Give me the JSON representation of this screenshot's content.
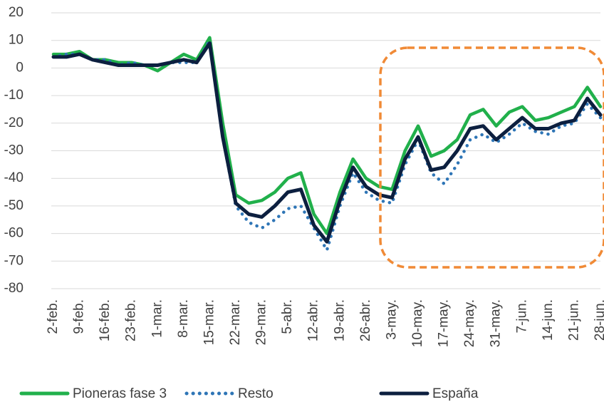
{
  "chart_data": {
    "type": "line",
    "categories": [
      "2-feb.",
      null,
      "9-feb.",
      null,
      "16-feb.",
      null,
      "23-feb.",
      null,
      "1-mar.",
      null,
      "8-mar.",
      null,
      "15-mar.",
      null,
      "22-mar.",
      null,
      "29-mar.",
      null,
      "5-abr.",
      null,
      "12-abr.",
      null,
      "19-abr.",
      null,
      "26-abr.",
      null,
      "3-may.",
      null,
      "10-may.",
      null,
      "17-may.",
      null,
      "24-may.",
      null,
      "31-may.",
      null,
      "7-jun.",
      null,
      "14-jun.",
      null,
      "21-jun.",
      null,
      "28-jun."
    ],
    "series": [
      {
        "name": "Pioneras fase 3",
        "color": "#21b04b",
        "style": "solid",
        "values": [
          5,
          5,
          6,
          3,
          3,
          2,
          2,
          1,
          -1,
          2,
          5,
          3,
          11,
          -20,
          -46,
          -49,
          -48,
          -45,
          -40,
          -38,
          -53,
          -60,
          -45,
          -33,
          -40,
          -43,
          -44,
          -30,
          -21,
          -32,
          -30,
          -26,
          -17,
          -15,
          -21,
          -16,
          -14,
          -19,
          -18,
          -16,
          -14,
          -7,
          -14
        ]
      },
      {
        "name": "Resto",
        "color": "#2e75b6",
        "style": "dotted",
        "values": [
          4,
          5,
          5,
          3,
          3,
          1,
          2,
          1,
          1,
          2,
          2,
          2,
          10,
          -25,
          -50,
          -56,
          -58,
          -55,
          -51,
          -50,
          -58,
          -66,
          -50,
          -38,
          -45,
          -48,
          -49,
          -35,
          -26,
          -38,
          -42,
          -35,
          -26,
          -24,
          -27,
          -24,
          -20,
          -23,
          -24,
          -21,
          -20,
          -13,
          -18
        ]
      },
      {
        "name": "España",
        "color": "#0c1f3f",
        "style": "solid",
        "values": [
          4,
          4,
          5,
          3,
          2,
          1,
          1,
          1,
          1,
          2,
          3,
          2,
          9,
          -25,
          -49,
          -53,
          -54,
          -50,
          -45,
          -44,
          -57,
          -63,
          -48,
          -36,
          -43,
          -46,
          -47,
          -33,
          -25,
          -37,
          -36,
          -30,
          -22,
          -21,
          -26,
          -22,
          -18,
          -22,
          -22,
          -20,
          -19,
          -11,
          -17
        ]
      }
    ],
    "ylim": [
      -80,
      20
    ],
    "yticks": [
      -80,
      -70,
      -60,
      -50,
      -40,
      -30,
      -20,
      -10,
      0,
      10,
      20
    ],
    "grid": true,
    "legend": "bottom"
  }
}
